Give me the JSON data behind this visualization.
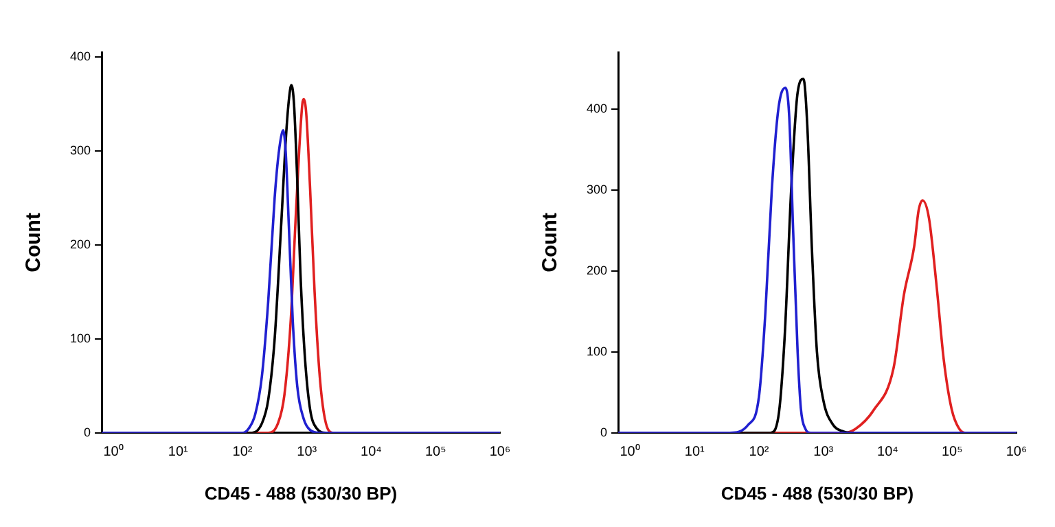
{
  "chart_data": [
    {
      "type": "line",
      "xlabel": "CD45 - 488 (530/30 BP)",
      "ylabel": "Count",
      "log": "x",
      "xlim": [
        0.65,
        1000000
      ],
      "ylim": [
        0,
        405
      ],
      "xticks": [
        {
          "value": 1,
          "label": "10⁰"
        },
        {
          "value": 10,
          "label": "10¹"
        },
        {
          "value": 100,
          "label": "10²"
        },
        {
          "value": 1000,
          "label": "10³"
        },
        {
          "value": 10000,
          "label": "10⁴"
        },
        {
          "value": 100000,
          "label": "10⁵"
        },
        {
          "value": 1000000,
          "label": "10⁶"
        }
      ],
      "yticks": [
        0,
        100,
        200,
        300,
        400
      ],
      "grid": false,
      "legend": false,
      "marker": "none",
      "line_style": "solid",
      "series": [
        {
          "color": "#2020d0",
          "x": [
            0.65,
            100,
            126,
            158,
            200,
            251,
            316,
            355,
            398,
            427,
            468,
            525,
            603,
            708,
            891,
            1122,
            1585,
            1000000
          ],
          "values": [
            0,
            0,
            5,
            20,
            60,
            140,
            250,
            290,
            315,
            322,
            300,
            220,
            120,
            50,
            15,
            3,
            0,
            0
          ]
        },
        {
          "color": "#000000",
          "x": [
            0.65,
            141,
            200,
            251,
            316,
            398,
            479,
            537,
            575,
            631,
            708,
            794,
            933,
            1122,
            1413,
            1995,
            1000000
          ],
          "values": [
            0,
            0,
            10,
            35,
            100,
            220,
            320,
            360,
            370,
            350,
            270,
            170,
            80,
            25,
            5,
            0,
            0
          ]
        },
        {
          "color": "#e02020",
          "x": [
            0.65,
            251,
            355,
            447,
            562,
            661,
            759,
            851,
            891,
            977,
            1122,
            1318,
            1585,
            1905,
            2512,
            1000000
          ],
          "values": [
            0,
            0,
            10,
            40,
            120,
            220,
            300,
            350,
            355,
            340,
            260,
            150,
            60,
            15,
            0,
            0
          ]
        }
      ]
    },
    {
      "type": "line",
      "xlabel": "CD45 - 488 (530/30 BP)",
      "ylabel": "Count",
      "log": "x",
      "xlim": [
        0.65,
        1000000
      ],
      "ylim": [
        0,
        470
      ],
      "xticks": [
        {
          "value": 1,
          "label": "10⁰"
        },
        {
          "value": 10,
          "label": "10¹"
        },
        {
          "value": 100,
          "label": "10²"
        },
        {
          "value": 1000,
          "label": "10³"
        },
        {
          "value": 10000,
          "label": "10⁴"
        },
        {
          "value": 100000,
          "label": "10⁵"
        },
        {
          "value": 1000000,
          "label": "10⁶"
        }
      ],
      "yticks": [
        0,
        100,
        200,
        300,
        400
      ],
      "grid": false,
      "legend": false,
      "marker": "none",
      "line_style": "solid",
      "series": [
        {
          "color": "#2020d0",
          "x": [
            0.65,
            35,
            68,
            100,
            126,
            158,
            200,
            257,
            295,
            339,
            398,
            447,
            525,
            631,
            1000000
          ],
          "values": [
            0,
            0,
            10,
            45,
            150,
            300,
            400,
            426,
            390,
            250,
            100,
            30,
            5,
            0,
            0
          ]
        },
        {
          "color": "#000000",
          "x": [
            0.65,
            151,
            200,
            251,
            316,
            398,
            490,
            562,
            661,
            794,
            1000,
            1413,
            1995,
            2818,
            1000000
          ],
          "values": [
            0,
            0,
            20,
            120,
            300,
            420,
            437,
            380,
            230,
            100,
            40,
            10,
            2,
            0,
            0
          ]
        },
        {
          "color": "#e02020",
          "x": [
            0.65,
            2042,
            3162,
            6026,
            12303,
            17783,
            25704,
            30200,
            34674,
            43652,
            57544,
            74131,
            97724,
            128825,
            169824,
            1000000
          ],
          "values": [
            0,
            0,
            5,
            28,
            80,
            170,
            230,
            275,
            287,
            265,
            180,
            90,
            30,
            5,
            0,
            0
          ]
        }
      ]
    }
  ]
}
